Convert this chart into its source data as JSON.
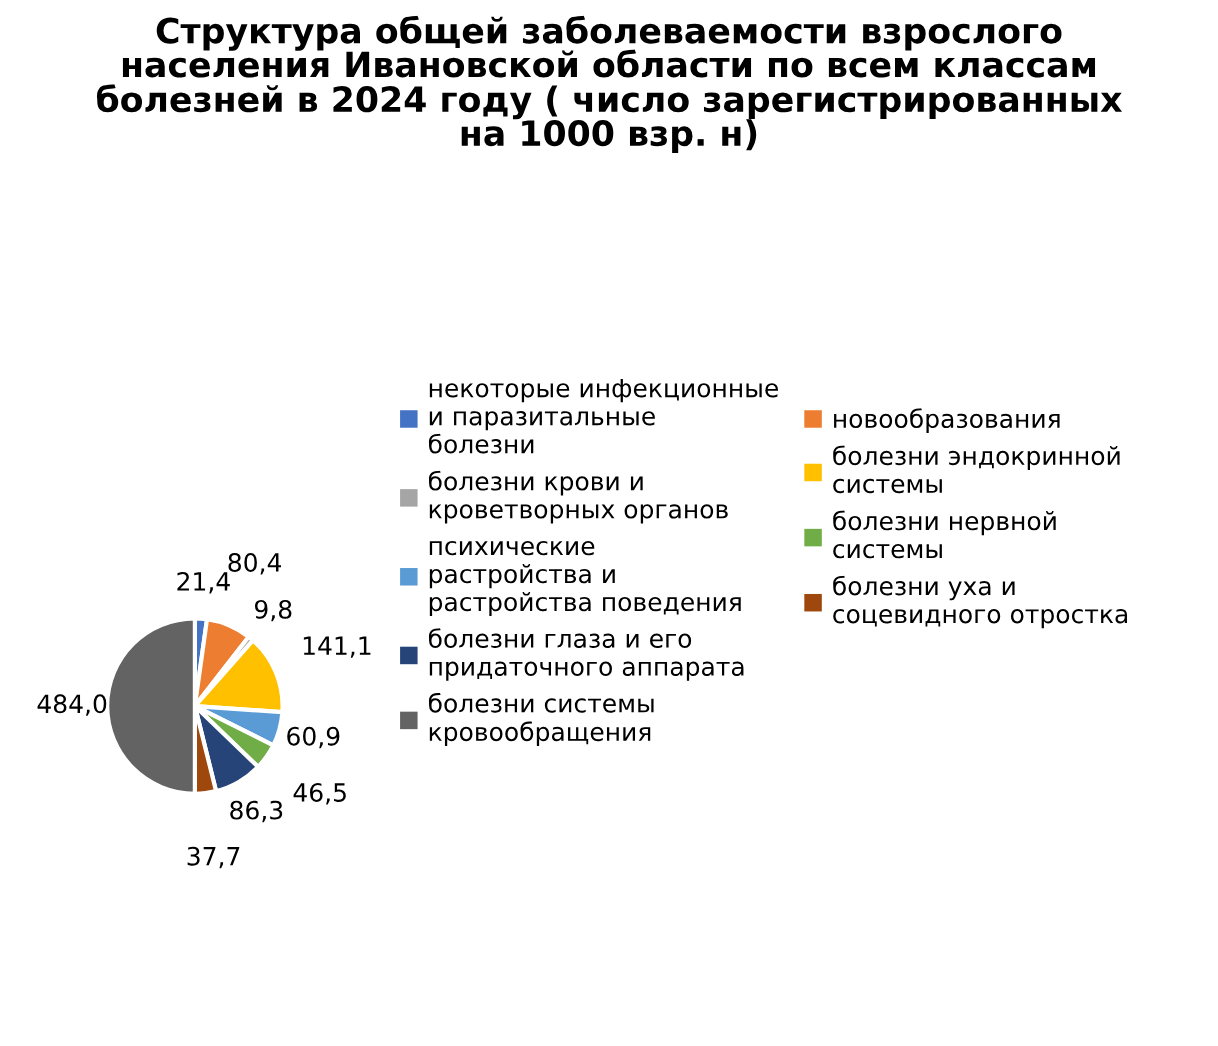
{
  "chart_data": {
    "type": "pie",
    "title": "Структура общей заболеваемости взрослого населения Ивановской области по всем классам болезней в 2024 году ( число зарегистрированных на 1000 взр. н)",
    "categories": [
      "некоторые инфекционные и паразитальные болезни",
      "новообразования",
      "болезни крови и кроветворных органов",
      "болезни эндокринной системы",
      "психические растройства и растройства поведения",
      "болезни нервной системы",
      "болезни глаза и его придаточного аппарата",
      "болезни уха и соцевидного отростка",
      "болезни системы кровообращения"
    ],
    "values": [
      21.4,
      80.4,
      9.8,
      141.1,
      60.9,
      46.5,
      86.3,
      37.7,
      484.0
    ],
    "value_labels": [
      "21,4",
      "80,4",
      "9,8",
      "141,1",
      "60,9",
      "46,5",
      "86,3",
      "37,7",
      "484,0"
    ],
    "colors": [
      "#4472c4",
      "#ed7d31",
      "#a5a5a5",
      "#ffc000",
      "#5b9bd5",
      "#70ad47",
      "#264478",
      "#9e480e",
      "#636363"
    ],
    "legend": "right"
  }
}
